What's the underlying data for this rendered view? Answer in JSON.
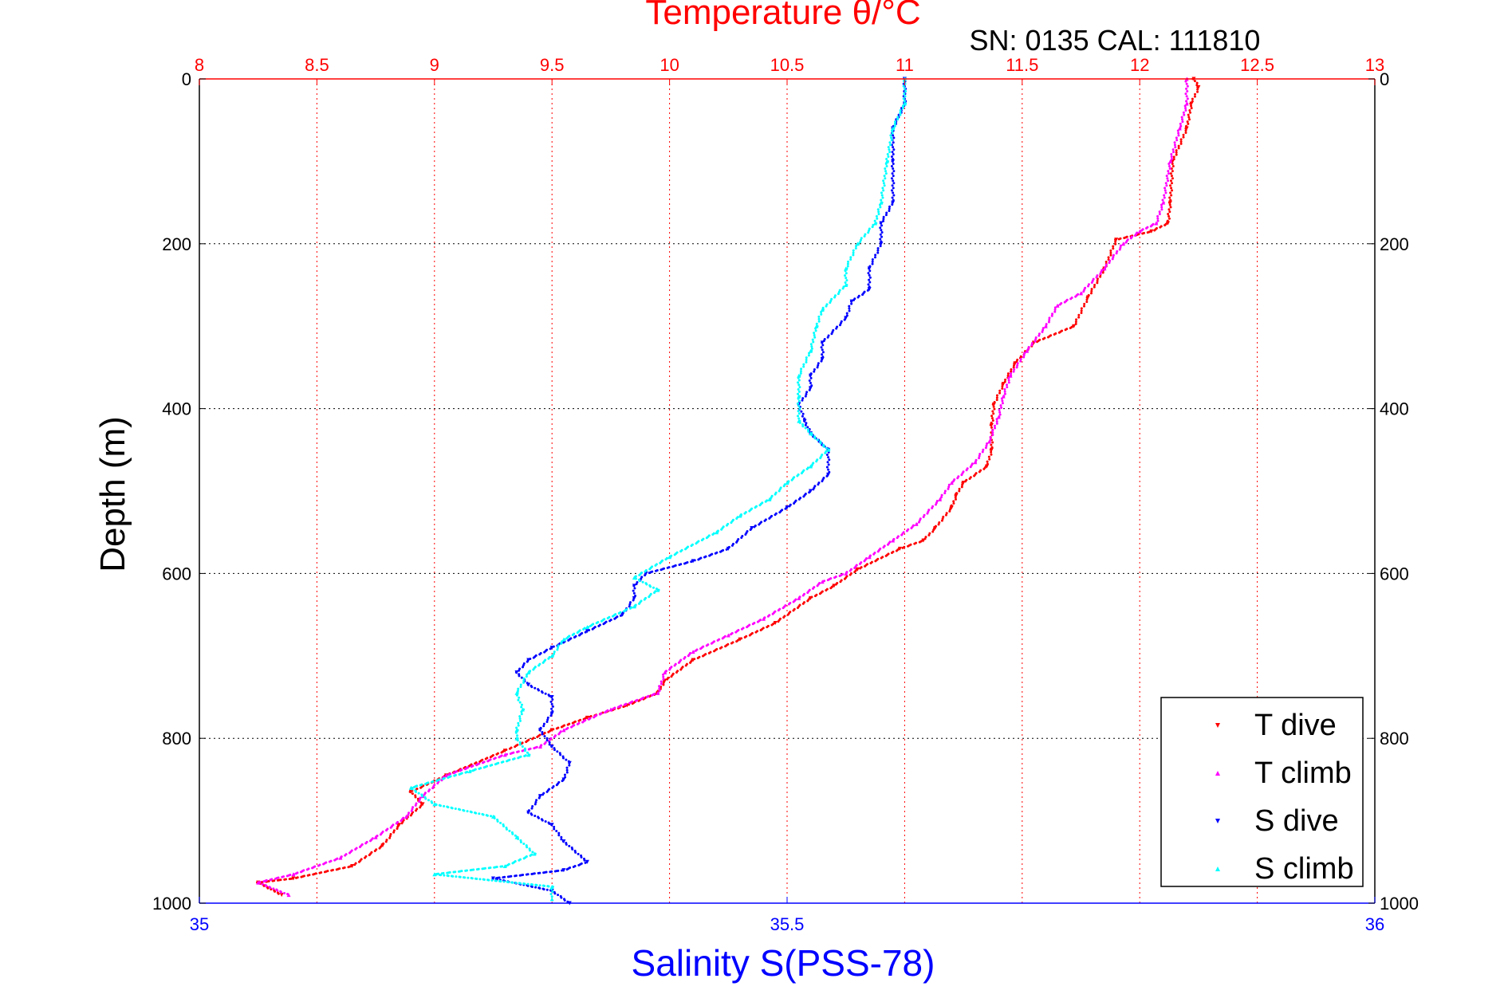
{
  "chart_data": {
    "type": "scatter",
    "title": "Temperature θ/°C",
    "subtitle": "SN: 0135  CAL: 111810",
    "xlabel_top": "Temperature θ/°C",
    "xlabel_bottom": "Salinity S(PSS-78)",
    "ylabel": "Depth (m)",
    "x_top": {
      "range": [
        8,
        13
      ],
      "ticks": [
        "8",
        "8.5",
        "9",
        "9.5",
        "10",
        "10.5",
        "11",
        "11.5",
        "12",
        "12.5",
        "13"
      ],
      "grid": true,
      "color": "#ff0000"
    },
    "x_bottom": {
      "range": [
        35,
        36
      ],
      "ticks": [
        "35",
        "35.5",
        "36"
      ],
      "color": "#0000ff"
    },
    "y": {
      "range": [
        0,
        1000
      ],
      "reversed": true,
      "ticks": [
        "0",
        "200",
        "400",
        "600",
        "800",
        "1000"
      ],
      "grid": true
    },
    "legend_position": "bottom-right",
    "series": [
      {
        "name": "T dive",
        "axis": "temperature",
        "color": "#ff0000",
        "marker": "triangle-down",
        "points": [
          [
            12.23,
            0
          ],
          [
            12.25,
            10
          ],
          [
            12.22,
            30
          ],
          [
            12.2,
            60
          ],
          [
            12.14,
            100
          ],
          [
            12.13,
            150
          ],
          [
            12.12,
            175
          ],
          [
            12.05,
            185
          ],
          [
            11.9,
            195
          ],
          [
            11.85,
            230
          ],
          [
            11.78,
            265
          ],
          [
            11.72,
            300
          ],
          [
            11.55,
            320
          ],
          [
            11.47,
            345
          ],
          [
            11.42,
            370
          ],
          [
            11.38,
            395
          ],
          [
            11.37,
            420
          ],
          [
            11.37,
            450
          ],
          [
            11.35,
            470
          ],
          [
            11.25,
            490
          ],
          [
            11.22,
            505
          ],
          [
            11.2,
            520
          ],
          [
            11.13,
            545
          ],
          [
            11.08,
            560
          ],
          [
            10.98,
            570
          ],
          [
            10.8,
            595
          ],
          [
            10.7,
            615
          ],
          [
            10.6,
            630
          ],
          [
            10.45,
            660
          ],
          [
            10.3,
            680
          ],
          [
            10.1,
            705
          ],
          [
            9.98,
            730
          ],
          [
            9.95,
            745
          ],
          [
            9.82,
            760
          ],
          [
            9.65,
            775
          ],
          [
            9.5,
            790
          ],
          [
            9.3,
            815
          ],
          [
            9.05,
            845
          ],
          [
            8.9,
            865
          ],
          [
            8.95,
            880
          ],
          [
            8.85,
            905
          ],
          [
            8.78,
            930
          ],
          [
            8.65,
            955
          ],
          [
            8.4,
            970
          ],
          [
            8.25,
            975
          ],
          [
            8.35,
            990
          ]
        ]
      },
      {
        "name": "T climb",
        "axis": "temperature",
        "color": "#ff00ff",
        "marker": "triangle-up",
        "points": [
          [
            12.2,
            0
          ],
          [
            12.2,
            30
          ],
          [
            12.17,
            60
          ],
          [
            12.13,
            100
          ],
          [
            12.1,
            150
          ],
          [
            12.07,
            175
          ],
          [
            12.0,
            185
          ],
          [
            11.93,
            200
          ],
          [
            11.85,
            230
          ],
          [
            11.75,
            260
          ],
          [
            11.65,
            275
          ],
          [
            11.6,
            300
          ],
          [
            11.52,
            330
          ],
          [
            11.45,
            360
          ],
          [
            11.42,
            385
          ],
          [
            11.4,
            410
          ],
          [
            11.36,
            440
          ],
          [
            11.3,
            465
          ],
          [
            11.2,
            490
          ],
          [
            11.15,
            510
          ],
          [
            11.05,
            540
          ],
          [
            10.95,
            560
          ],
          [
            10.85,
            580
          ],
          [
            10.75,
            600
          ],
          [
            10.65,
            610
          ],
          [
            10.55,
            630
          ],
          [
            10.4,
            655
          ],
          [
            10.25,
            675
          ],
          [
            10.1,
            695
          ],
          [
            9.98,
            720
          ],
          [
            9.95,
            745
          ],
          [
            9.75,
            765
          ],
          [
            9.55,
            790
          ],
          [
            9.45,
            810
          ],
          [
            9.3,
            820
          ],
          [
            9.05,
            845
          ],
          [
            8.95,
            870
          ],
          [
            8.88,
            895
          ],
          [
            8.75,
            920
          ],
          [
            8.6,
            945
          ],
          [
            8.4,
            965
          ],
          [
            8.25,
            975
          ],
          [
            8.38,
            990
          ]
        ]
      },
      {
        "name": "S dive",
        "axis": "salinity",
        "color": "#0000ff",
        "marker": "triangle-down",
        "points": [
          [
            35.6,
            0
          ],
          [
            35.6,
            30
          ],
          [
            35.59,
            60
          ],
          [
            35.59,
            100
          ],
          [
            35.59,
            150
          ],
          [
            35.58,
            175
          ],
          [
            35.58,
            200
          ],
          [
            35.57,
            230
          ],
          [
            35.57,
            255
          ],
          [
            35.555,
            270
          ],
          [
            35.55,
            290
          ],
          [
            35.53,
            320
          ],
          [
            35.53,
            340
          ],
          [
            35.52,
            360
          ],
          [
            35.52,
            375
          ],
          [
            35.51,
            395
          ],
          [
            35.515,
            415
          ],
          [
            35.52,
            430
          ],
          [
            35.535,
            450
          ],
          [
            35.535,
            480
          ],
          [
            35.52,
            500
          ],
          [
            35.5,
            520
          ],
          [
            35.47,
            545
          ],
          [
            35.45,
            570
          ],
          [
            35.42,
            585
          ],
          [
            35.38,
            600
          ],
          [
            35.37,
            615
          ],
          [
            35.37,
            630
          ],
          [
            35.36,
            650
          ],
          [
            35.33,
            670
          ],
          [
            35.3,
            690
          ],
          [
            35.28,
            705
          ],
          [
            35.27,
            720
          ],
          [
            35.28,
            735
          ],
          [
            35.3,
            750
          ],
          [
            35.3,
            770
          ],
          [
            35.29,
            790
          ],
          [
            35.3,
            810
          ],
          [
            35.315,
            830
          ],
          [
            35.31,
            850
          ],
          [
            35.29,
            870
          ],
          [
            35.28,
            890
          ],
          [
            35.3,
            905
          ],
          [
            35.31,
            925
          ],
          [
            35.33,
            950
          ],
          [
            35.31,
            960
          ],
          [
            35.25,
            970
          ],
          [
            35.3,
            985
          ],
          [
            35.315,
            1000
          ]
        ]
      },
      {
        "name": "S climb",
        "axis": "salinity",
        "color": "#00ffff",
        "marker": "triangle-up",
        "points": [
          [
            35.6,
            0
          ],
          [
            35.6,
            30
          ],
          [
            35.59,
            60
          ],
          [
            35.585,
            100
          ],
          [
            35.58,
            150
          ],
          [
            35.575,
            175
          ],
          [
            35.56,
            200
          ],
          [
            35.55,
            230
          ],
          [
            35.55,
            250
          ],
          [
            35.53,
            280
          ],
          [
            35.525,
            300
          ],
          [
            35.52,
            330
          ],
          [
            35.51,
            360
          ],
          [
            35.51,
            385
          ],
          [
            35.51,
            415
          ],
          [
            35.52,
            430
          ],
          [
            35.535,
            450
          ],
          [
            35.52,
            470
          ],
          [
            35.5,
            490
          ],
          [
            35.485,
            510
          ],
          [
            35.46,
            530
          ],
          [
            35.44,
            550
          ],
          [
            35.4,
            580
          ],
          [
            35.37,
            605
          ],
          [
            35.39,
            620
          ],
          [
            35.37,
            640
          ],
          [
            35.33,
            665
          ],
          [
            35.31,
            680
          ],
          [
            35.3,
            700
          ],
          [
            35.28,
            720
          ],
          [
            35.27,
            745
          ],
          [
            35.275,
            765
          ],
          [
            35.27,
            790
          ],
          [
            35.27,
            800
          ],
          [
            35.28,
            820
          ],
          [
            35.23,
            840
          ],
          [
            35.18,
            860
          ],
          [
            35.2,
            880
          ],
          [
            35.25,
            895
          ],
          [
            35.27,
            920
          ],
          [
            35.285,
            940
          ],
          [
            35.26,
            955
          ],
          [
            35.2,
            965
          ],
          [
            35.3,
            980
          ],
          [
            35.3,
            995
          ]
        ]
      }
    ]
  }
}
